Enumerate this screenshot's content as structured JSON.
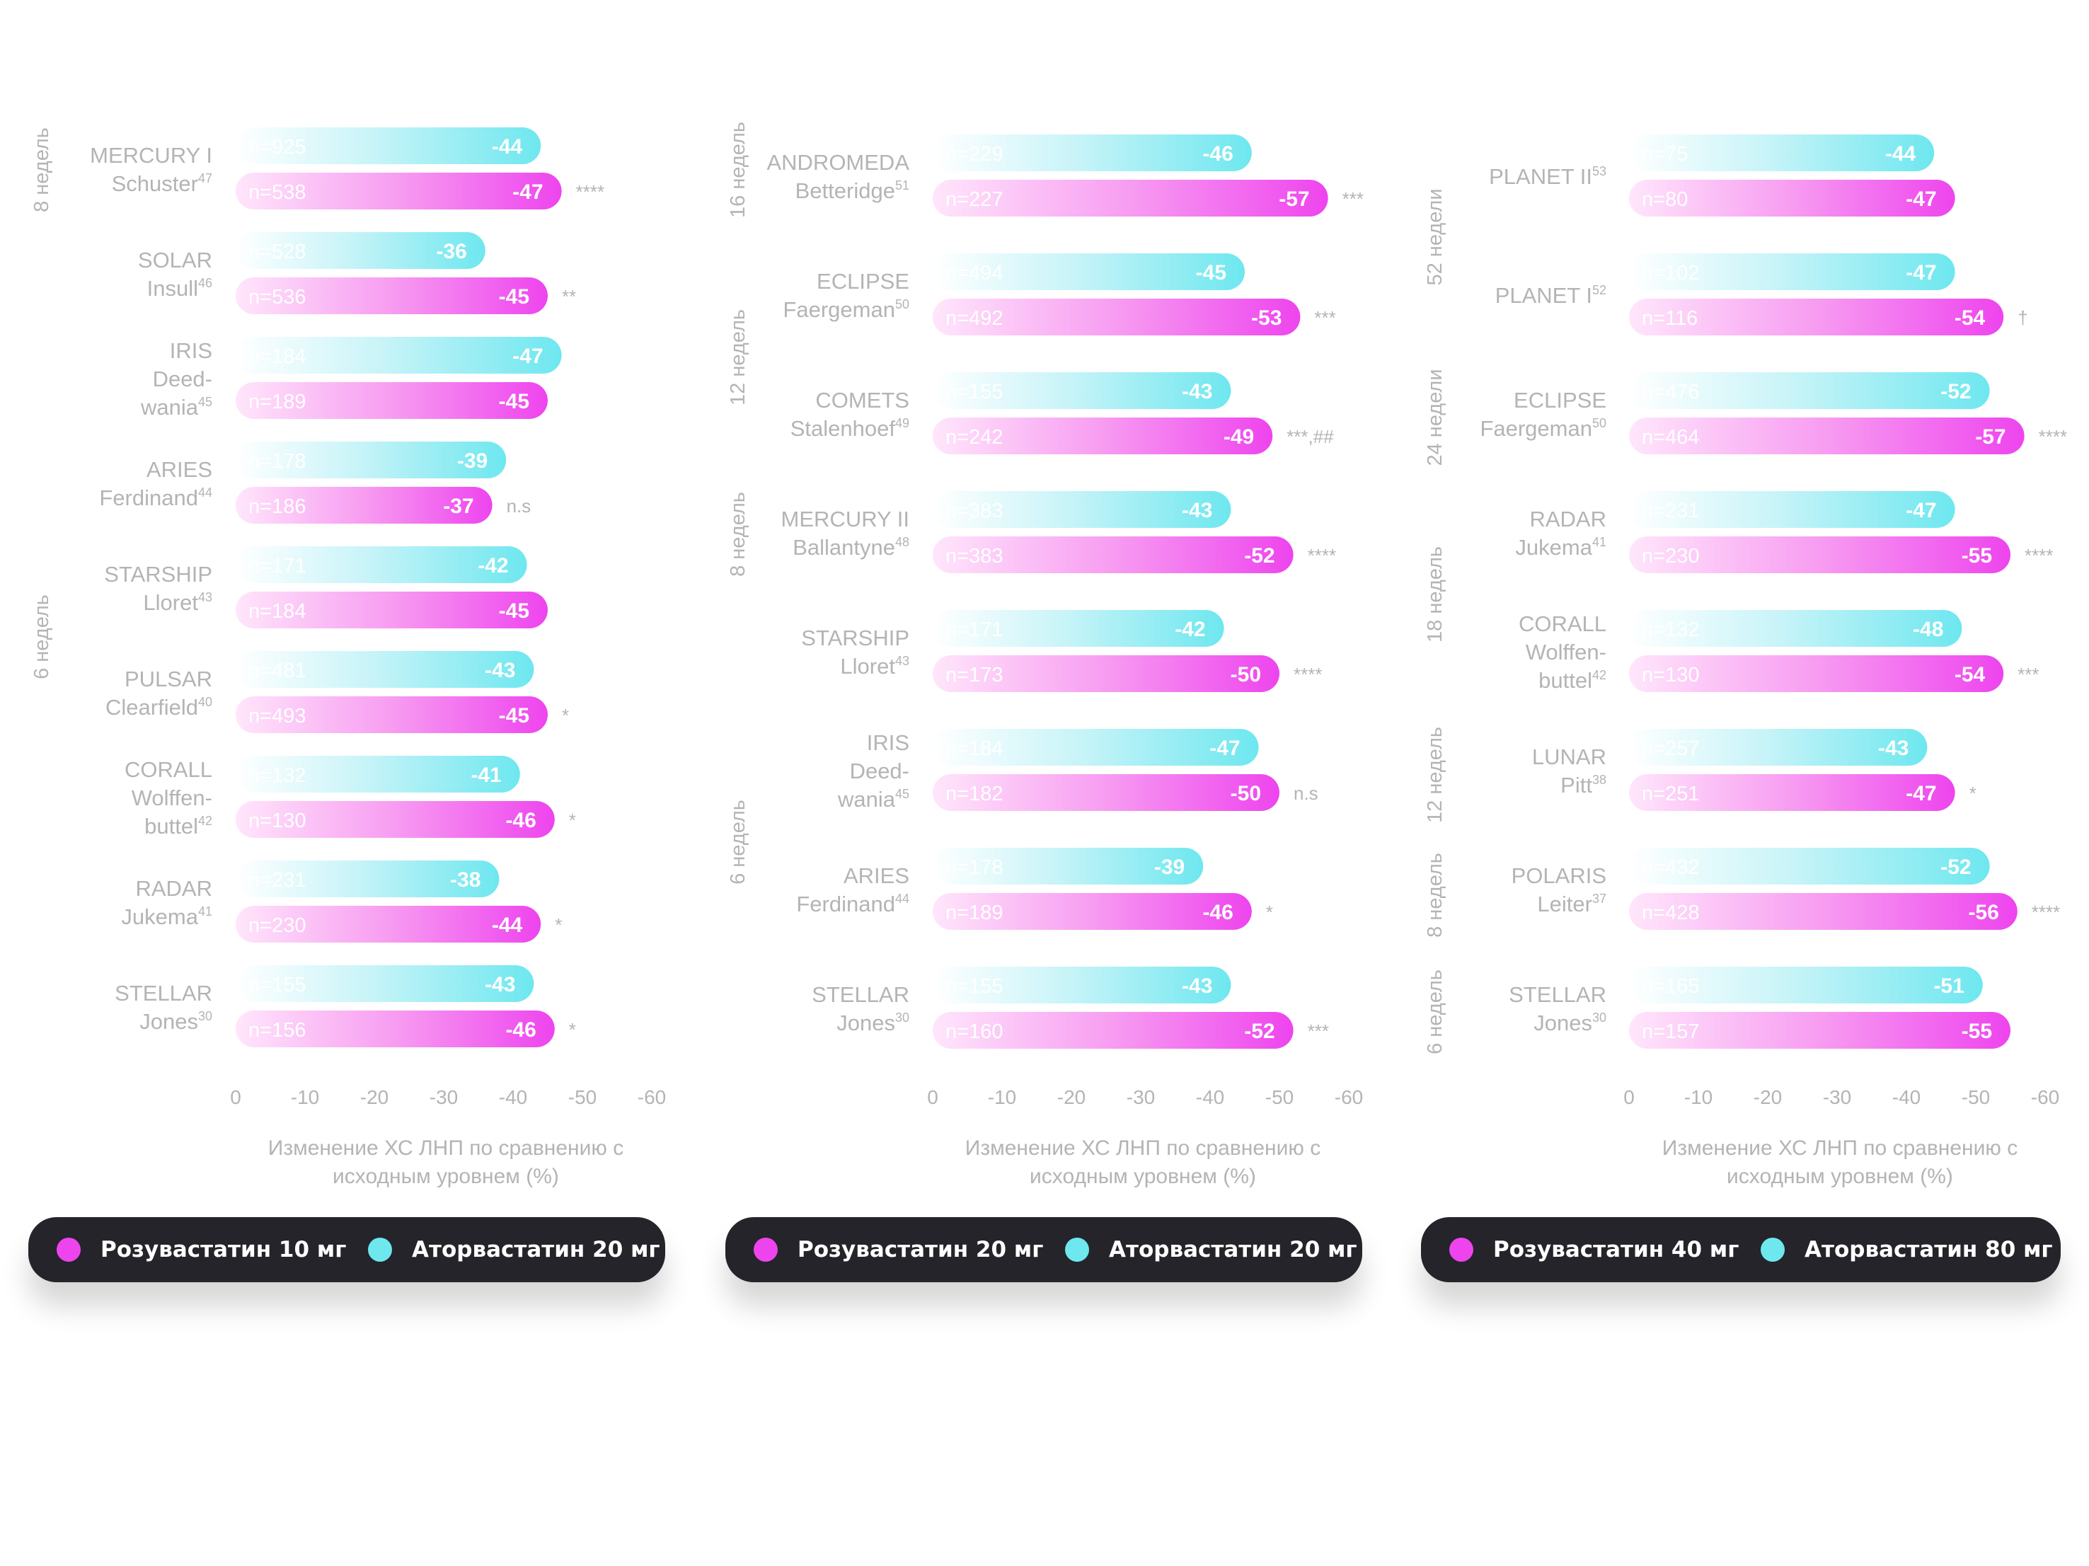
{
  "colors": {
    "rosuvastatin": "#ee44ee",
    "atorvastatin": "#6ee7ef",
    "label_grey": "#b4b4b4",
    "legend_bg": "#24242a"
  },
  "chart_data": [
    {
      "type": "bar",
      "xlim": [
        0,
        -60
      ],
      "ticks": [
        "0",
        "-10",
        "-20",
        "-30",
        "-40",
        "-50",
        "-60"
      ],
      "xlabel_line1": "Изменение ХС ЛНП по сравнению с",
      "xlabel_line2": "исходным уровнем (%)",
      "period_labels": [
        "8 недель",
        "6 недель"
      ],
      "legend": [
        {
          "name": "Розувастатин 10 мг",
          "color": "#ee44ee"
        },
        {
          "name": "Аторвастатин 20 мг",
          "color": "#6ee7ef"
        }
      ],
      "studies": [
        {
          "name_lines": [
            "MERCURY I",
            "Schuster"
          ],
          "ref": "47",
          "ator": {
            "n": "n=925",
            "value": -44
          },
          "rosu": {
            "n": "n=538",
            "value": -47
          },
          "sig": "****"
        },
        {
          "name_lines": [
            "SOLAR",
            "Insull"
          ],
          "ref": "46",
          "ator": {
            "n": "n=528",
            "value": -36
          },
          "rosu": {
            "n": "n=536",
            "value": -45
          },
          "sig": "**"
        },
        {
          "name_lines": [
            "IRIS",
            "Deed-",
            "wania"
          ],
          "ref": "45",
          "ator": {
            "n": "n=184",
            "value": -47
          },
          "rosu": {
            "n": "n=189",
            "value": -45
          },
          "sig": ""
        },
        {
          "name_lines": [
            "ARIES",
            "Ferdinand"
          ],
          "ref": "44",
          "ator": {
            "n": "n=178",
            "value": -39
          },
          "rosu": {
            "n": "n=186",
            "value": -37
          },
          "sig": "n.s"
        },
        {
          "name_lines": [
            "STARSHIP",
            "Lloret"
          ],
          "ref": "43",
          "ator": {
            "n": "n=171",
            "value": -42
          },
          "rosu": {
            "n": "n=184",
            "value": -45
          },
          "sig": ""
        },
        {
          "name_lines": [
            "PULSAR",
            "Clearfield"
          ],
          "ref": "40",
          "ator": {
            "n": "n=481",
            "value": -43
          },
          "rosu": {
            "n": "n=493",
            "value": -45
          },
          "sig": "*"
        },
        {
          "name_lines": [
            "CORALL",
            "Wolffen-",
            "buttel"
          ],
          "ref": "42",
          "ator": {
            "n": "n=132",
            "value": -41
          },
          "rosu": {
            "n": "n=130",
            "value": -46
          },
          "sig": "*"
        },
        {
          "name_lines": [
            "RADAR",
            "Jukema"
          ],
          "ref": "41",
          "ator": {
            "n": "n=231",
            "value": -38
          },
          "rosu": {
            "n": "n=230",
            "value": -44
          },
          "sig": "*"
        },
        {
          "name_lines": [
            "STELLAR",
            "Jones"
          ],
          "ref": "30",
          "ator": {
            "n": "n=155",
            "value": -43
          },
          "rosu": {
            "n": "n=156",
            "value": -46
          },
          "sig": "*"
        }
      ]
    },
    {
      "type": "bar",
      "xlim": [
        0,
        -60
      ],
      "ticks": [
        "0",
        "-10",
        "-20",
        "-30",
        "-40",
        "-50",
        "-60"
      ],
      "xlabel_line1": "Изменение ХС ЛНП по сравнению с",
      "xlabel_line2": "исходным уровнем (%)",
      "period_labels": [
        "16 недель",
        "12 недель",
        "8 недель",
        "6 недель"
      ],
      "legend": [
        {
          "name": "Розувастатин 20 мг",
          "color": "#ee44ee"
        },
        {
          "name": "Аторвастатин 20 мг",
          "color": "#6ee7ef"
        }
      ],
      "studies": [
        {
          "name_lines": [
            "ANDROMEDA",
            "Betteridge"
          ],
          "ref": "51",
          "ator": {
            "n": "n=229",
            "value": -46
          },
          "rosu": {
            "n": "n=227",
            "value": -57
          },
          "sig": "***"
        },
        {
          "name_lines": [
            "ECLIPSE",
            "Faergeman"
          ],
          "ref": "50",
          "ator": {
            "n": "n=494",
            "value": -45
          },
          "rosu": {
            "n": "n=492",
            "value": -53
          },
          "sig": "***"
        },
        {
          "name_lines": [
            "COMETS",
            "Stalenhoef"
          ],
          "ref": "49",
          "ator": {
            "n": "n=155",
            "value": -43
          },
          "rosu": {
            "n": "n=242",
            "value": -49
          },
          "sig": "***,##"
        },
        {
          "name_lines": [
            "MERCURY II",
            "Ballantyne"
          ],
          "ref": "48",
          "ator": {
            "n": "n=383",
            "value": -43
          },
          "rosu": {
            "n": "n=383",
            "value": -52
          },
          "sig": "****"
        },
        {
          "name_lines": [
            "STARSHIP",
            "Lloret"
          ],
          "ref": "43",
          "ator": {
            "n": "n=171",
            "value": -42
          },
          "rosu": {
            "n": "n=173",
            "value": -50
          },
          "sig": "****"
        },
        {
          "name_lines": [
            "IRIS",
            "Deed-",
            "wania"
          ],
          "ref": "45",
          "ator": {
            "n": "n=184",
            "value": -47
          },
          "rosu": {
            "n": "n=182",
            "value": -50
          },
          "sig": "n.s"
        },
        {
          "name_lines": [
            "ARIES",
            "Ferdinand"
          ],
          "ref": "44",
          "ator": {
            "n": "n=178",
            "value": -39
          },
          "rosu": {
            "n": "n=189",
            "value": -46
          },
          "sig": "*"
        },
        {
          "name_lines": [
            "STELLAR",
            "Jones"
          ],
          "ref": "30",
          "ator": {
            "n": "n=155",
            "value": -43
          },
          "rosu": {
            "n": "n=160",
            "value": -52
          },
          "sig": "***"
        }
      ]
    },
    {
      "type": "bar",
      "xlim": [
        0,
        -60
      ],
      "ticks": [
        "0",
        "-10",
        "-20",
        "-30",
        "-40",
        "-50",
        "-60"
      ],
      "xlabel_line1": "Изменение ХС ЛНП по сравнению с",
      "xlabel_line2": "исходным уровнем (%)",
      "period_labels": [
        "52 недели",
        "24 недели",
        "18 недель",
        "12 недель",
        "8 недель",
        "6 недель"
      ],
      "legend": [
        {
          "name": "Розувастатин 40 мг",
          "color": "#ee44ee"
        },
        {
          "name": "Аторвастатин 80 мг",
          "color": "#6ee7ef"
        }
      ],
      "studies": [
        {
          "name_lines": [
            "PLANET II"
          ],
          "ref": "53",
          "ator": {
            "n": "n=75",
            "value": -44
          },
          "rosu": {
            "n": "n=80",
            "value": -47
          },
          "sig": ""
        },
        {
          "name_lines": [
            "PLANET I"
          ],
          "ref": "52",
          "ator": {
            "n": "n=102",
            "value": -47
          },
          "rosu": {
            "n": "n=116",
            "value": -54
          },
          "sig": "†"
        },
        {
          "name_lines": [
            "ECLIPSE",
            "Faergeman"
          ],
          "ref": "50",
          "ator": {
            "n": "n=476",
            "value": -52
          },
          "rosu": {
            "n": "n=464",
            "value": -57
          },
          "sig": "****"
        },
        {
          "name_lines": [
            "RADAR",
            "Jukema"
          ],
          "ref": "41",
          "ator": {
            "n": "n=231",
            "value": -47
          },
          "rosu": {
            "n": "n=230",
            "value": -55
          },
          "sig": "****"
        },
        {
          "name_lines": [
            "CORALL",
            "Wolffen-",
            "buttel"
          ],
          "ref": "42",
          "ator": {
            "n": "n=132",
            "value": -48
          },
          "rosu": {
            "n": "n=130",
            "value": -54
          },
          "sig": "***"
        },
        {
          "name_lines": [
            "LUNAR",
            "Pitt"
          ],
          "ref": "38",
          "ator": {
            "n": "n=257",
            "value": -43
          },
          "rosu": {
            "n": "n=251",
            "value": -47
          },
          "sig": "*"
        },
        {
          "name_lines": [
            "POLARIS",
            "Leiter"
          ],
          "ref": "37",
          "ator": {
            "n": "n=432",
            "value": -52
          },
          "rosu": {
            "n": "n=428",
            "value": -56
          },
          "sig": "****"
        },
        {
          "name_lines": [
            "STELLAR",
            "Jones"
          ],
          "ref": "30",
          "ator": {
            "n": "n=165",
            "value": -51
          },
          "rosu": {
            "n": "n=157",
            "value": -55
          },
          "sig": ""
        }
      ]
    }
  ]
}
